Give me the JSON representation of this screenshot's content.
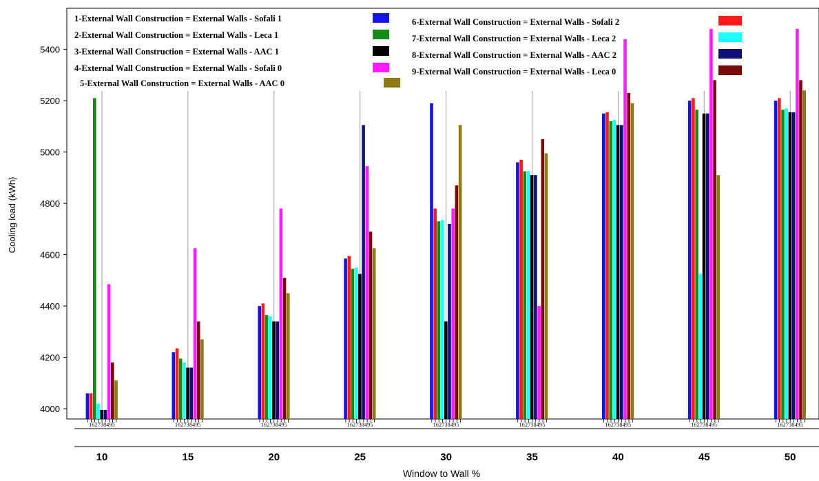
{
  "chart_data": {
    "type": "bar",
    "xlabel": "Window to Wall %",
    "ylabel": "Cooling load (kWh)",
    "ylim": [
      3960,
      5560
    ],
    "y_ticks": [
      "4000",
      "4200",
      "4400",
      "4600",
      "4800",
      "5000",
      "5200",
      "5400"
    ],
    "categories": [
      "10",
      "15",
      "20",
      "25",
      "30",
      "35",
      "40",
      "45",
      "50"
    ],
    "group_order": [
      1,
      6,
      2,
      7,
      3,
      8,
      4,
      9,
      5
    ],
    "sub_tick_label": "162738495",
    "grid": "vertical",
    "legend_position": "top",
    "series": [
      {
        "id": 1,
        "name": "1-External Wall Construction = External Walls - Sofali 1",
        "color": "#1414e6",
        "values": [
          4060,
          4220,
          4400,
          4585,
          5190,
          4960,
          5150,
          5200,
          5200
        ]
      },
      {
        "id": 2,
        "name": "2-External Wall Construction = External Walls - Leca 1",
        "color": "#168a16",
        "values": [
          5210,
          4195,
          4365,
          4545,
          4730,
          4925,
          5120,
          5165,
          5165
        ]
      },
      {
        "id": 3,
        "name": "3-External Wall Construction = External Walls - AAC 1",
        "color": "#000000",
        "values": [
          3995,
          4160,
          4340,
          4525,
          4340,
          4910,
          5105,
          5150,
          5155
        ]
      },
      {
        "id": 4,
        "name": "4-External Wall Construction = External Walls - Sofali 0",
        "color": "#ff1aff",
        "values": [
          4485,
          4625,
          4780,
          4945,
          4780,
          4400,
          5440,
          5480,
          5480
        ]
      },
      {
        "id": 5,
        "name": "5-External Wall Construction = External Walls - AAC 0",
        "color": "#8c7b14",
        "values": [
          4110,
          4270,
          4450,
          4625,
          5105,
          4995,
          5190,
          4910,
          5240
        ]
      },
      {
        "id": 6,
        "name": "6-External Wall Construction = External Walls - Sofali 2",
        "color": "#ff1a1a",
        "values": [
          4060,
          4235,
          4410,
          4595,
          4780,
          4970,
          5155,
          5210,
          5210
        ]
      },
      {
        "id": 7,
        "name": "7-External Wall Construction = External Walls - Leca 2",
        "color": "#1affff",
        "values": [
          4020,
          4180,
          4360,
          4550,
          4735,
          4925,
          5125,
          4525,
          5170
        ]
      },
      {
        "id": 8,
        "name": "8-External Wall Construction = External Walls - AAC 2",
        "color": "#10107a",
        "values": [
          3995,
          4160,
          4340,
          5105,
          4720,
          4910,
          5105,
          5150,
          5155
        ]
      },
      {
        "id": 9,
        "name": "9-External Wall Construction = External Walls - Leca 0",
        "color": "#7a0a0a",
        "values": [
          4180,
          4340,
          4510,
          4690,
          4870,
          5050,
          5230,
          5280,
          5280
        ]
      }
    ]
  }
}
